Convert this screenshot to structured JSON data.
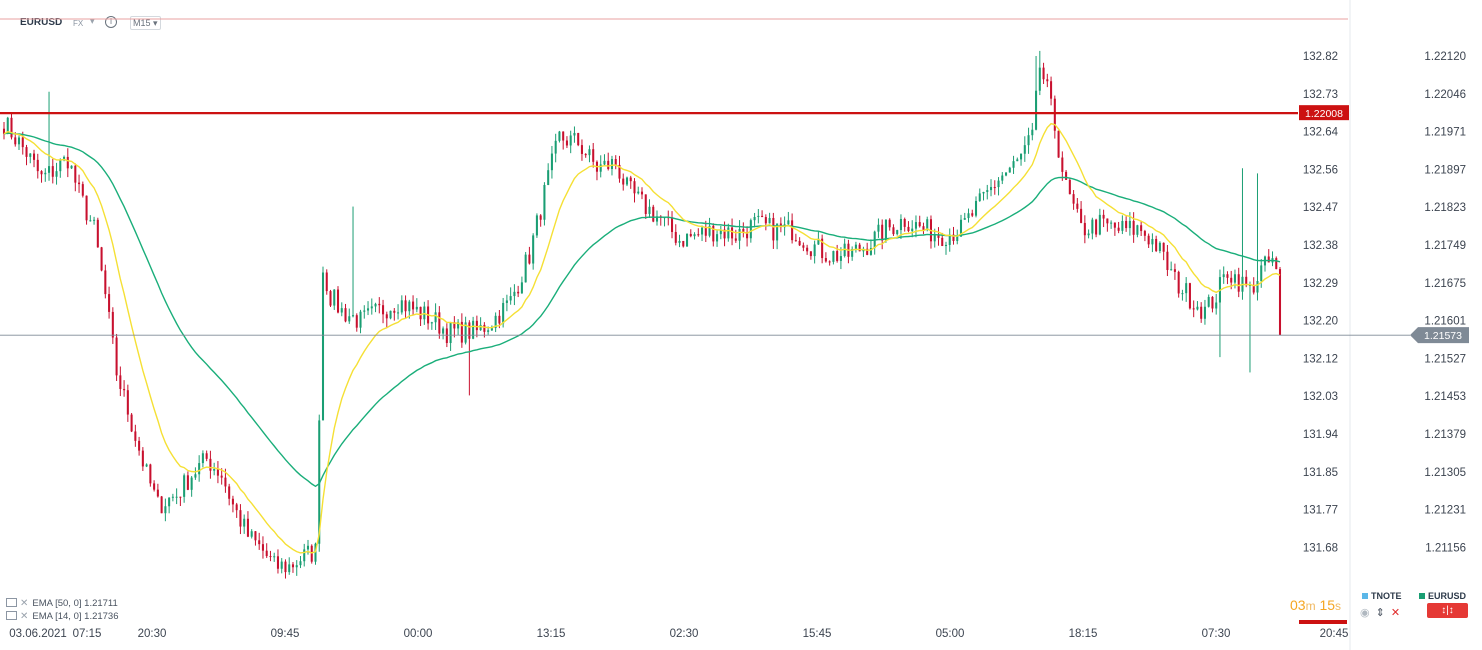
{
  "header": {
    "symbol": "EURUSD",
    "instrument_type": "FX",
    "timeframe": "M15",
    "icons": [
      "chevron-down-icon",
      "info-icon",
      "chevron-down-icon"
    ]
  },
  "chart_data": {
    "type": "candlestick",
    "symbol": "EURUSD",
    "timeframe": "M15",
    "y_axis_left": {
      "ticks": [
        "132.82",
        "132.73",
        "132.64",
        "132.56",
        "132.47",
        "132.38",
        "132.29",
        "132.20",
        "132.12",
        "132.03",
        "131.94",
        "131.85",
        "131.77",
        "131.68"
      ]
    },
    "y_axis_right": {
      "ticks": [
        "1.22120",
        "1.22046",
        "1.21971",
        "1.21897",
        "1.21823",
        "1.21749",
        "1.21675",
        "1.21601",
        "1.21527",
        "1.21453",
        "1.21379",
        "1.21305",
        "1.21231",
        "1.21156"
      ],
      "ylim": [
        1.2108,
        1.2222
      ]
    },
    "x_axis": {
      "ticks": [
        "03.06.2021",
        "07:15",
        "20:30",
        "09:45",
        "00:00",
        "13:15",
        "02:30",
        "15:45",
        "05:00",
        "18:15",
        "07:30",
        "20:45"
      ]
    },
    "horizontal_line": {
      "value": 1.22008,
      "label": "1.22008",
      "color": "#cc1111"
    },
    "current_price": {
      "value": 1.21573,
      "label": "1.21573"
    },
    "path_anchors": [
      [
        0,
        1.2199
      ],
      [
        6,
        1.2193
      ],
      [
        10,
        1.2188
      ],
      [
        14,
        1.219
      ],
      [
        17,
        1.2192
      ],
      [
        20,
        1.2185
      ],
      [
        24,
        1.2178
      ],
      [
        27,
        1.2165
      ],
      [
        30,
        1.215
      ],
      [
        34,
        1.214
      ],
      [
        38,
        1.213
      ],
      [
        41,
        1.2124
      ],
      [
        46,
        1.2126
      ],
      [
        50,
        1.213
      ],
      [
        54,
        1.2133
      ],
      [
        58,
        1.213
      ],
      [
        61,
        1.2124
      ],
      [
        65,
        1.2118
      ],
      [
        69,
        1.2115
      ],
      [
        72,
        1.2112
      ],
      [
        76,
        1.2112
      ],
      [
        80,
        1.2114
      ],
      [
        83,
        1.2115
      ],
      [
        85,
        1.217
      ],
      [
        87,
        1.2165
      ],
      [
        90,
        1.2162
      ],
      [
        95,
        1.216
      ],
      [
        100,
        1.2162
      ],
      [
        105,
        1.2164
      ],
      [
        110,
        1.2162
      ],
      [
        115,
        1.216
      ],
      [
        118,
        1.2158
      ],
      [
        122,
        1.2158
      ],
      [
        126,
        1.2158
      ],
      [
        130,
        1.216
      ],
      [
        135,
        1.2164
      ],
      [
        140,
        1.2173
      ],
      [
        145,
        1.2188
      ],
      [
        148,
        1.2196
      ],
      [
        153,
        1.2195
      ],
      [
        158,
        1.219
      ],
      [
        163,
        1.2191
      ],
      [
        166,
        1.2186
      ],
      [
        170,
        1.2183
      ],
      [
        175,
        1.218
      ],
      [
        180,
        1.2176
      ],
      [
        185,
        1.2177
      ],
      [
        190,
        1.2178
      ],
      [
        195,
        1.2177
      ],
      [
        200,
        1.2179
      ],
      [
        205,
        1.2178
      ],
      [
        210,
        1.2178
      ],
      [
        215,
        1.2175
      ],
      [
        220,
        1.2173
      ],
      [
        225,
        1.2173
      ],
      [
        230,
        1.2175
      ],
      [
        235,
        1.2178
      ],
      [
        240,
        1.218
      ],
      [
        245,
        1.2178
      ],
      [
        250,
        1.2177
      ],
      [
        255,
        1.2178
      ],
      [
        260,
        1.2183
      ],
      [
        265,
        1.2188
      ],
      [
        270,
        1.2191
      ],
      [
        274,
        1.2196
      ],
      [
        276,
        1.221
      ],
      [
        278,
        1.2205
      ],
      [
        280,
        1.2198
      ],
      [
        283,
        1.2186
      ],
      [
        287,
        1.2178
      ],
      [
        292,
        1.2179
      ],
      [
        297,
        1.2178
      ],
      [
        303,
        1.2178
      ],
      [
        307,
        1.2175
      ],
      [
        312,
        1.2168
      ],
      [
        317,
        1.2164
      ],
      [
        320,
        1.2162
      ],
      [
        323,
        1.2165
      ],
      [
        326,
        1.217
      ],
      [
        329,
        1.2168
      ],
      [
        332,
        1.2166
      ],
      [
        335,
        1.217
      ],
      [
        338,
        1.2172
      ],
      [
        340,
        1.2166
      ]
    ],
    "candle_count": 341,
    "seed": 7,
    "series": [
      {
        "name": "EMA [50, 0]",
        "value": "1.21711",
        "period": 50,
        "color": "#1aae7a"
      },
      {
        "name": "EMA [14, 0]",
        "value": "1.21736",
        "period": 14,
        "color": "#f5e035"
      }
    ],
    "colors": {
      "up": "#1a9e73",
      "down": "#c8102e"
    },
    "grid": false
  },
  "legend": {
    "rows": [
      {
        "label": "EMA [50, 0]",
        "value": "1.21711"
      },
      {
        "label": "EMA [14, 0]",
        "value": "1.21736"
      }
    ]
  },
  "timer": {
    "minutes": "03",
    "m_unit": "m",
    "seconds": "15",
    "s_unit": "s"
  },
  "overlays": {
    "tnote": "TNOTE",
    "eurusd": "EURUSD"
  }
}
